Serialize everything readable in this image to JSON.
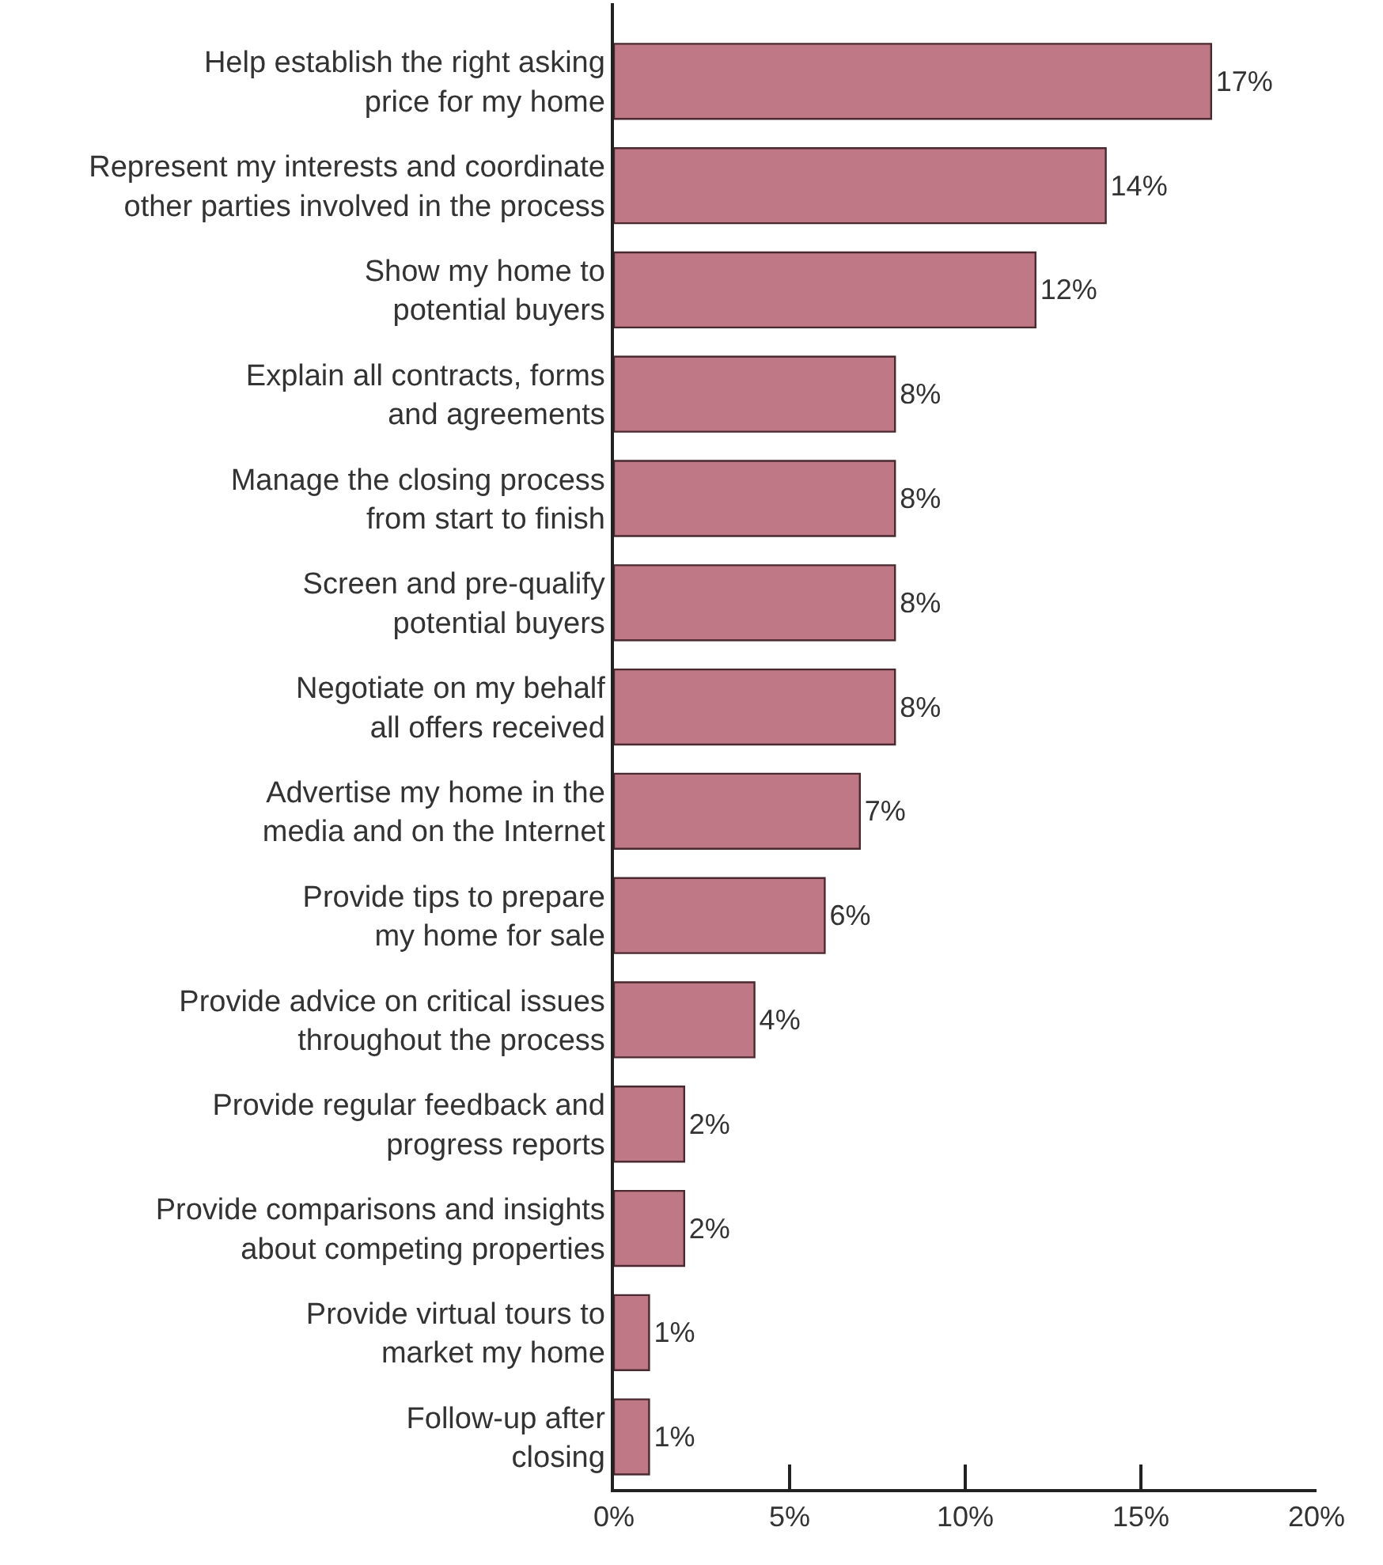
{
  "chart_data": {
    "type": "bar",
    "orientation": "horizontal",
    "categories": [
      "Help establish the right asking\nprice for my home",
      "Represent my interests and coordinate\nother parties involved in the process",
      "Show my home to\npotential buyers",
      "Explain all contracts, forms\nand agreements",
      "Manage the closing process\nfrom start to finish",
      "Screen and pre-qualify\npotential buyers",
      "Negotiate on my behalf\nall offers received",
      "Advertise my home in the\nmedia and on the Internet",
      "Provide tips to prepare\nmy home for sale",
      "Provide advice on critical issues\nthroughout the process",
      "Provide regular feedback and\nprogress reports",
      "Provide comparisons and insights\nabout competing properties",
      "Provide virtual tours to\nmarket my home",
      "Follow-up after\nclosing"
    ],
    "values": [
      17,
      14,
      12,
      8,
      8,
      8,
      8,
      7,
      6,
      4,
      2,
      2,
      1,
      1
    ],
    "value_labels": [
      "17%",
      "14%",
      "12%",
      "8%",
      "8%",
      "8%",
      "8%",
      "7%",
      "6%",
      "4%",
      "2%",
      "2%",
      "1%",
      "1%"
    ],
    "color": "#bf7885",
    "xlim": [
      0,
      20
    ],
    "xticks": [
      {
        "value": 0,
        "label": "0%"
      },
      {
        "value": 5,
        "label": "5%"
      },
      {
        "value": 10,
        "label": "10%"
      },
      {
        "value": 15,
        "label": "15%"
      },
      {
        "value": 20,
        "label": "20%"
      }
    ],
    "legend": false
  }
}
